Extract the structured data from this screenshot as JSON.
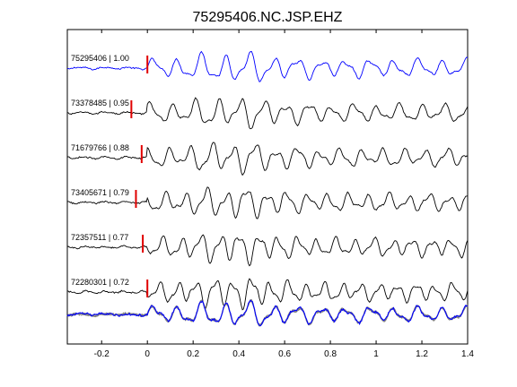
{
  "chart_data": {
    "type": "line",
    "title": "75295406.NC.JSP.EHZ",
    "xlabel": "",
    "ylabel": "",
    "xlim": [
      -0.35,
      1.4
    ],
    "x_ticks": [
      "-0.2",
      "0",
      "0.2",
      "0.4",
      "0.6",
      "0.8",
      "1",
      "1.2",
      "1.4"
    ],
    "x_tick_values": [
      -0.2,
      0,
      0.2,
      0.4,
      0.6,
      0.8,
      1.0,
      1.2,
      1.4
    ],
    "pick_color": "#e00000",
    "series": [
      {
        "name": "75295406 | 1.00",
        "id": "75295406",
        "cc": 1.0,
        "pick_time": 0.0,
        "color": "#0000ff"
      },
      {
        "name": "73378485 | 0.95",
        "id": "73378485",
        "cc": 0.95,
        "pick_time": -0.07,
        "color": "#000000"
      },
      {
        "name": "71679766 | 0.88",
        "id": "71679766",
        "cc": 0.88,
        "pick_time": -0.025,
        "color": "#000000"
      },
      {
        "name": "73405671 | 0.79",
        "id": "73405671",
        "cc": 0.79,
        "pick_time": -0.05,
        "color": "#000000"
      },
      {
        "name": "72357511 | 0.77",
        "id": "72357511",
        "cc": 0.77,
        "pick_time": -0.02,
        "color": "#000000"
      },
      {
        "name": "72280301 | 0.72",
        "id": "72280301",
        "cc": 0.72,
        "pick_time": 0.0,
        "color": "#000000"
      }
    ],
    "stack": {
      "colors": [
        "#808080",
        "#0000ff"
      ]
    }
  }
}
